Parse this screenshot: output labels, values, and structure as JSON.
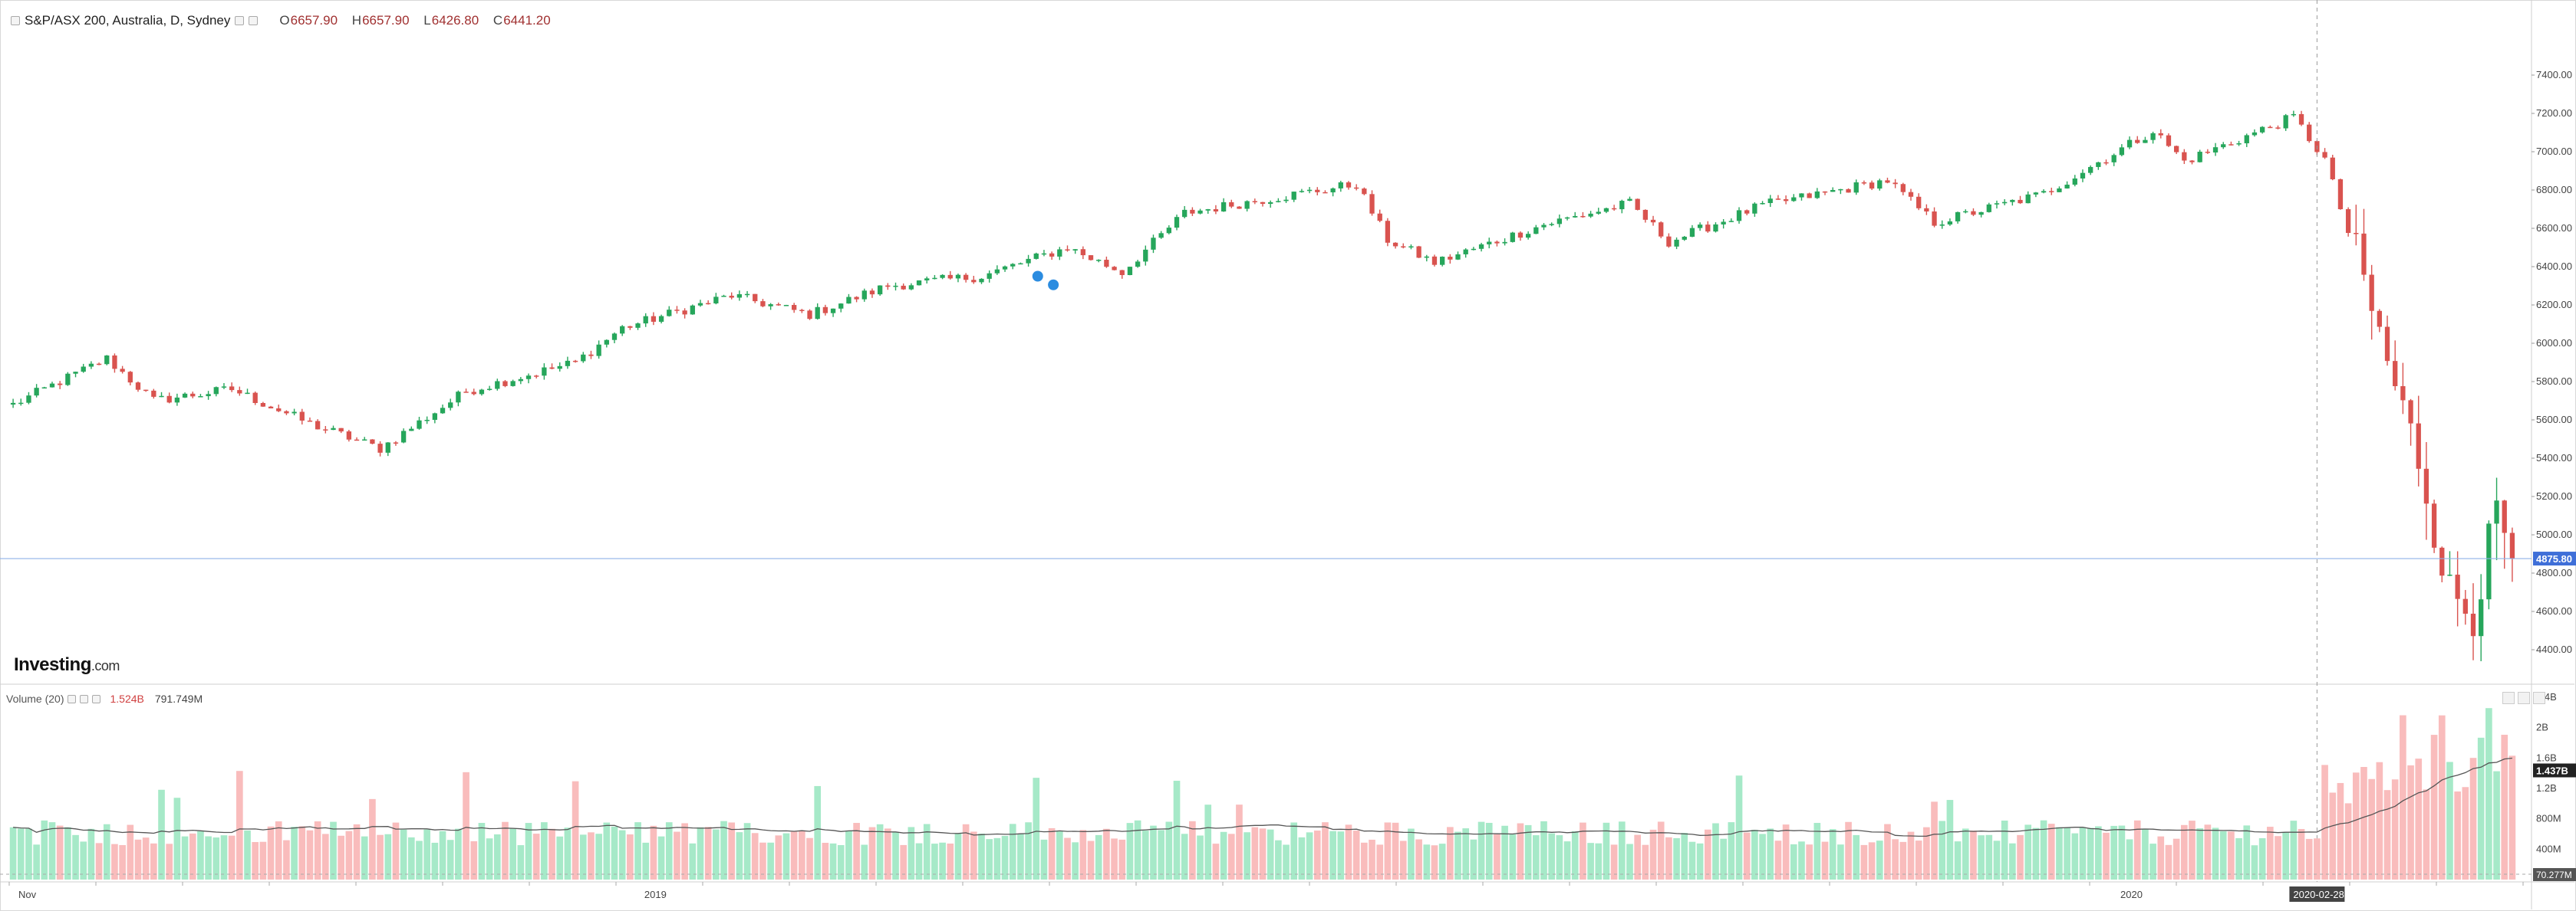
{
  "legend": {
    "symbol": "S&P/ASX 200, Australia, D, Sydney",
    "open_label": "O",
    "open": "6657.90",
    "high_label": "H",
    "high": "6657.90",
    "low_label": "L",
    "low": "6426.80",
    "close_label": "C",
    "close": "6441.20"
  },
  "volume_legend": {
    "title": "Volume (20)",
    "value1": "1.524B",
    "value2": "791.749M"
  },
  "brand": {
    "name": "Investing",
    "domain": ".com"
  },
  "last_price_label": "4875.80",
  "volume_last_label": "1.437B",
  "volume_floor_label": "70.277M",
  "cursor_date_label": "2020-02-28",
  "colors": {
    "up": "#26a65b",
    "down": "#d9534f",
    "vol_up": "#a6e9c8",
    "vol_down": "#f9bcbc",
    "ma": "#555555",
    "price_line": "#8fb2e8",
    "price_tag": "#3f6fd8"
  },
  "chart_data": [
    {
      "type": "candlestick",
      "title": "",
      "y_ticks": [
        4400,
        4600,
        4800,
        5000,
        5200,
        5400,
        5600,
        5800,
        6000,
        6200,
        6400,
        6600,
        6800,
        7000,
        7200,
        7400
      ],
      "ylim": [
        4300,
        7500
      ],
      "x_labels": [
        "Nov",
        "2019",
        "2020"
      ],
      "start_price": 5680,
      "anchors": [
        [
          0,
          5680
        ],
        [
          12,
          5920
        ],
        [
          18,
          5700
        ],
        [
          28,
          5760
        ],
        [
          38,
          5580
        ],
        [
          47,
          5450
        ],
        [
          58,
          5750
        ],
        [
          72,
          5900
        ],
        [
          78,
          6080
        ],
        [
          92,
          6250
        ],
        [
          102,
          6150
        ],
        [
          112,
          6300
        ],
        [
          124,
          6350
        ],
        [
          135,
          6500
        ],
        [
          142,
          6370
        ],
        [
          150,
          6680
        ],
        [
          160,
          6750
        ],
        [
          172,
          6830
        ],
        [
          176,
          6540
        ],
        [
          182,
          6420
        ],
        [
          196,
          6620
        ],
        [
          207,
          6730
        ],
        [
          212,
          6530
        ],
        [
          224,
          6720
        ],
        [
          240,
          6850
        ],
        [
          246,
          6630
        ],
        [
          260,
          6780
        ],
        [
          274,
          7110
        ],
        [
          278,
          6950
        ],
        [
          292,
          7180
        ],
        [
          296,
          6960
        ],
        [
          300,
          6450
        ],
        [
          304,
          5900
        ],
        [
          308,
          5400
        ],
        [
          312,
          4700
        ],
        [
          315,
          4600
        ],
        [
          318,
          5100
        ],
        [
          320,
          4875
        ]
      ],
      "last_price": 4875.8
    },
    {
      "type": "bar",
      "title": "Volume (20)",
      "y_ticks_labels": [
        "400M",
        "800M",
        "1.2B",
        "1.6B",
        "2B",
        "2.4B"
      ],
      "y_ticks": [
        400,
        800,
        1200,
        1600,
        2000,
        2400
      ],
      "ylim": [
        0,
        2600
      ],
      "base_volume_millions": 600,
      "ma_period": 20
    }
  ]
}
